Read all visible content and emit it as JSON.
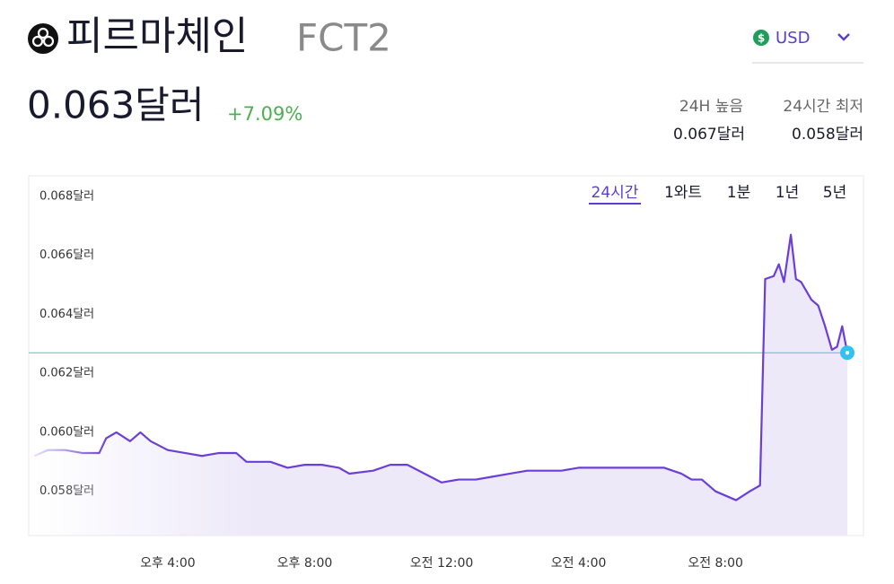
{
  "header": {
    "name": "피르마체인",
    "symbol": "FCT2",
    "currency": "USD",
    "price": "0.063달러",
    "change": "+7.09%"
  },
  "stats": [
    {
      "label": "24H 높음",
      "value": "0.067달러"
    },
    {
      "label": "24시간 최저",
      "value": "0.058달러"
    }
  ],
  "ranges": {
    "options": [
      "24시간",
      "1와트",
      "1분",
      "1년",
      "5년"
    ],
    "active": 0
  },
  "chart_data": {
    "type": "line",
    "color": "#6b3fd6",
    "grid": false,
    "x": [
      12.1,
      12.5,
      13,
      13.5,
      14,
      14.2,
      14.5,
      14.9,
      15.2,
      15.5,
      16,
      16.5,
      17,
      17.5,
      18,
      18.3,
      19,
      19.5,
      20,
      20.5,
      21,
      21.3,
      22,
      22.5,
      23,
      23.5,
      24,
      24.5,
      25,
      25.5,
      26,
      26.5,
      27,
      27.5,
      28,
      28.5,
      29,
      29.5,
      30,
      30.5,
      31,
      31.3,
      31.6,
      32,
      32.6,
      33,
      33.3,
      33.45,
      33.7,
      33.85,
      34,
      34.2,
      34.35,
      34.5,
      34.8,
      35,
      35.2,
      35.4,
      35.55,
      35.7,
      35.85
    ],
    "values": [
      0.0592,
      0.0594,
      0.0594,
      0.0593,
      0.0593,
      0.0598,
      0.06,
      0.0597,
      0.06,
      0.0597,
      0.0594,
      0.0593,
      0.0592,
      0.0593,
      0.0593,
      0.059,
      0.059,
      0.0588,
      0.0589,
      0.0589,
      0.0588,
      0.0586,
      0.0587,
      0.0589,
      0.0589,
      0.0586,
      0.0583,
      0.0584,
      0.0584,
      0.0585,
      0.0586,
      0.0587,
      0.0587,
      0.0587,
      0.0588,
      0.0588,
      0.0588,
      0.0588,
      0.0588,
      0.0588,
      0.0586,
      0.0584,
      0.0584,
      0.058,
      0.0577,
      0.058,
      0.0582,
      0.0652,
      0.0653,
      0.0657,
      0.0651,
      0.0667,
      0.0652,
      0.0651,
      0.0645,
      0.0643,
      0.0636,
      0.0628,
      0.0629,
      0.0636,
      0.0627
    ],
    "xlim": [
      12.07,
      35.85
    ],
    "ylim": [
      0.0565,
      0.0687
    ],
    "xticks": [
      {
        "value": 16,
        "label": "오후 4:00"
      },
      {
        "value": 20,
        "label": "오후 8:00"
      },
      {
        "value": 24,
        "label": "오전 12:00"
      },
      {
        "value": 28,
        "label": "오전 4:00"
      },
      {
        "value": 32,
        "label": "오전 8:00"
      }
    ],
    "yticks": [
      {
        "value": 0.058,
        "label": "0.058달러"
      },
      {
        "value": 0.06,
        "label": "0.060달러"
      },
      {
        "value": 0.062,
        "label": "0.062달러"
      },
      {
        "value": 0.064,
        "label": "0.064달러"
      },
      {
        "value": 0.066,
        "label": "0.066달러"
      },
      {
        "value": 0.068,
        "label": "0.068달러"
      }
    ]
  }
}
